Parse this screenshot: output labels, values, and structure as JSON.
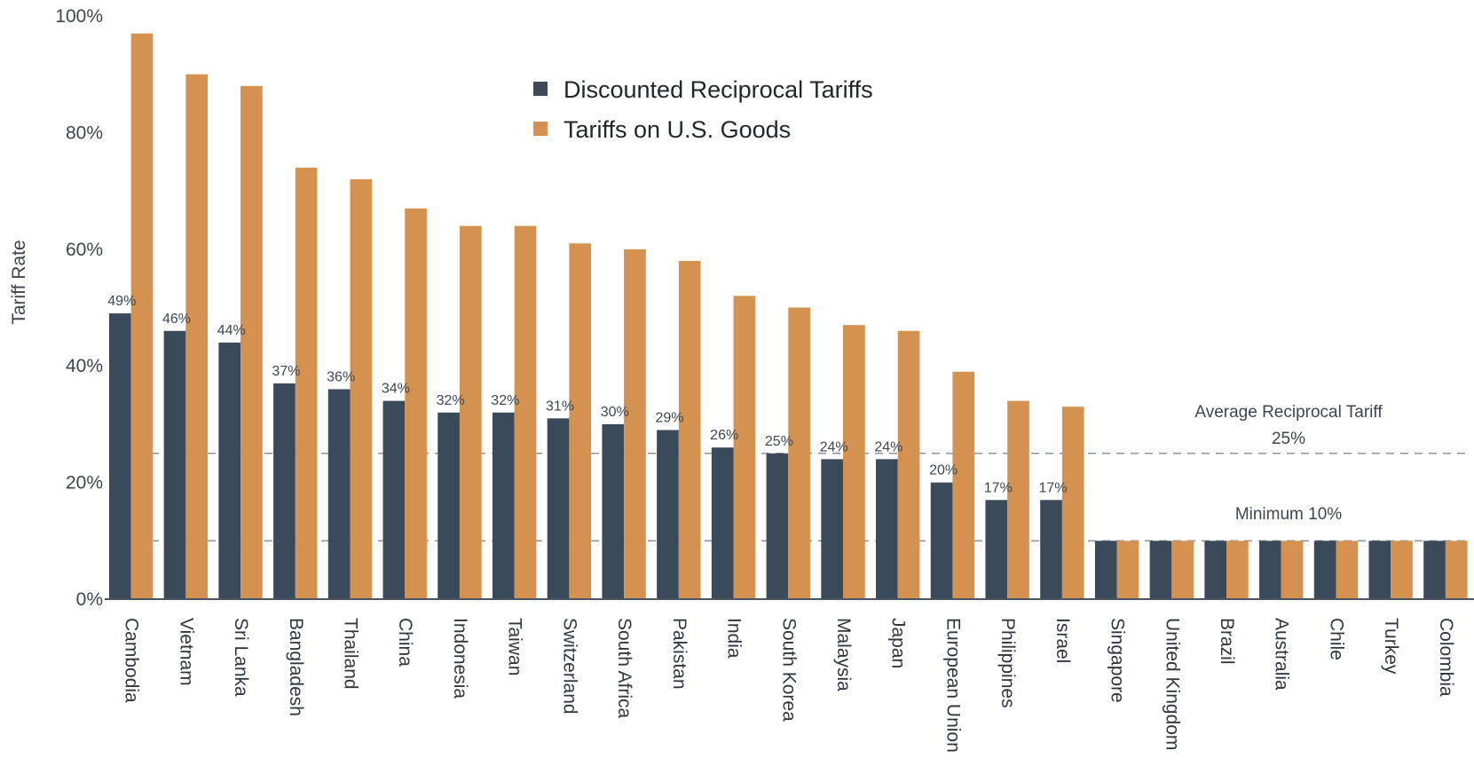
{
  "chart_data": {
    "type": "bar",
    "ylabel": "Tariff Rate",
    "xlabel": "",
    "ylim": [
      0,
      100
    ],
    "yticks": [
      "0%",
      "20%",
      "40%",
      "60%",
      "80%",
      "100%"
    ],
    "yticks_values": [
      0,
      20,
      40,
      60,
      80,
      100
    ],
    "categories": [
      "Cambodia",
      "Vietnam",
      "Sri Lanka",
      "Bangladesh",
      "Thailand",
      "China",
      "Indonesia",
      "Taiwan",
      "Switzerland",
      "South Africa",
      "Pakistan",
      "India",
      "South Korea",
      "Malaysia",
      "Japan",
      "European Union",
      "Philippines",
      "Israel",
      "Singapore",
      "United Kingdom",
      "Brazil",
      "Australia",
      "Chile",
      "Turkey",
      "Colombia"
    ],
    "series": [
      {
        "name": "Discounted Reciprocal Tariffs",
        "color": "#3b4a5a",
        "values": [
          49,
          46,
          44,
          37,
          36,
          34,
          32,
          32,
          31,
          30,
          29,
          26,
          25,
          24,
          24,
          20,
          17,
          17,
          10,
          10,
          10,
          10,
          10,
          10,
          10
        ],
        "data_labels": [
          "49%",
          "46%",
          "44%",
          "37%",
          "36%",
          "34%",
          "32%",
          "32%",
          "31%",
          "30%",
          "29%",
          "26%",
          "25%",
          "24%",
          "24%",
          "20%",
          "17%",
          "17%",
          "",
          "",
          "",
          "",
          "",
          "",
          ""
        ]
      },
      {
        "name": "Tariffs on U.S. Goods",
        "color": "#d4914f",
        "values": [
          97,
          90,
          88,
          74,
          72,
          67,
          64,
          64,
          61,
          60,
          58,
          52,
          50,
          47,
          46,
          39,
          34,
          33,
          10,
          10,
          10,
          10,
          10,
          10,
          10
        ]
      }
    ],
    "reference_lines": [
      {
        "value": 25,
        "label_lines": [
          "Average Reciprocal Tariff",
          "25%"
        ],
        "style": "dashed"
      },
      {
        "value": 10,
        "label_lines": [
          "Minimum 10%"
        ],
        "style": "dashed"
      }
    ],
    "legend_position": "top-center",
    "grid": false
  }
}
